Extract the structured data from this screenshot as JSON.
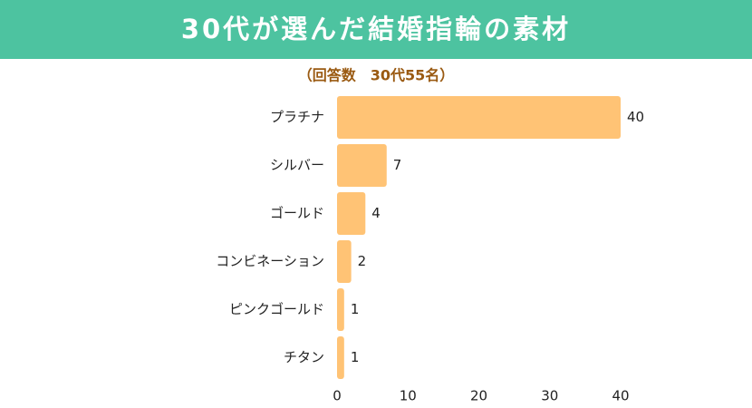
{
  "chart_data": {
    "type": "bar",
    "orientation": "horizontal",
    "title": "30代が選んだ結婚指輪の素材",
    "subtitle": "（回答数　30代55名）",
    "categories": [
      "プラチナ",
      "シルバー",
      "ゴールド",
      "コンビネーション",
      "ピンクゴールド",
      "チタン"
    ],
    "values": [
      40,
      7,
      4,
      2,
      1,
      1
    ],
    "color": "#ffc375",
    "xlim": [
      0,
      40
    ],
    "xticks": [
      0,
      10,
      20,
      30,
      40
    ]
  }
}
